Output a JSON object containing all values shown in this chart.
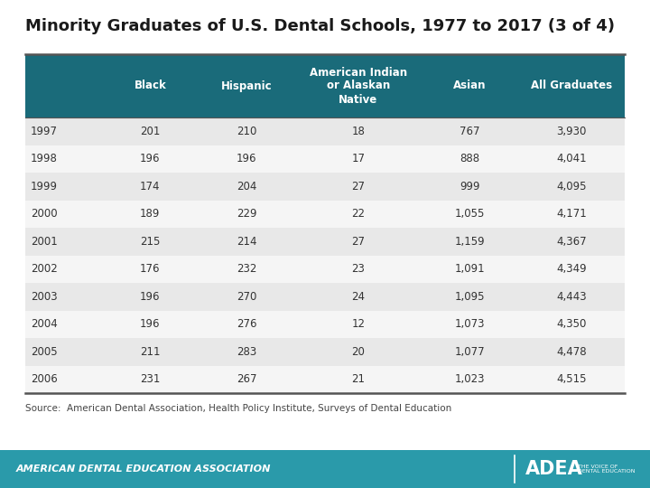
{
  "title": "Minority Graduates of U.S. Dental Schools, 1977 to 2017 (3 of 4)",
  "columns": [
    "",
    "Black",
    "Hispanic",
    "American Indian\nor Alaskan\nNative",
    "Asian",
    "All Graduates"
  ],
  "rows": [
    [
      "1997",
      "201",
      "210",
      "18",
      "767",
      "3,930"
    ],
    [
      "1998",
      "196",
      "196",
      "17",
      "888",
      "4,041"
    ],
    [
      "1999",
      "174",
      "204",
      "27",
      "999",
      "4,095"
    ],
    [
      "2000",
      "189",
      "229",
      "22",
      "1,055",
      "4,171"
    ],
    [
      "2001",
      "215",
      "214",
      "27",
      "1,159",
      "4,367"
    ],
    [
      "2002",
      "176",
      "232",
      "23",
      "1,091",
      "4,349"
    ],
    [
      "2003",
      "196",
      "270",
      "24",
      "1,095",
      "4,443"
    ],
    [
      "2004",
      "196",
      "276",
      "12",
      "1,073",
      "4,350"
    ],
    [
      "2005",
      "211",
      "283",
      "20",
      "1,077",
      "4,478"
    ],
    [
      "2006",
      "231",
      "267",
      "21",
      "1,023",
      "4,515"
    ]
  ],
  "header_bg": "#1a6b7a",
  "header_text_color": "#ffffff",
  "row_bg_odd": "#e8e8e8",
  "row_bg_even": "#f5f5f5",
  "row_text_color": "#333333",
  "source_text": "Source:  American Dental Association, Health Policy Institute, Surveys of Dental Education",
  "footer_bg": "#2a9aaa",
  "footer_text": "AMERICAN DENTAL EDUCATION ASSOCIATION",
  "title_fontsize": 13,
  "header_fontsize": 8.5,
  "cell_fontsize": 8.5,
  "source_fontsize": 7.5
}
